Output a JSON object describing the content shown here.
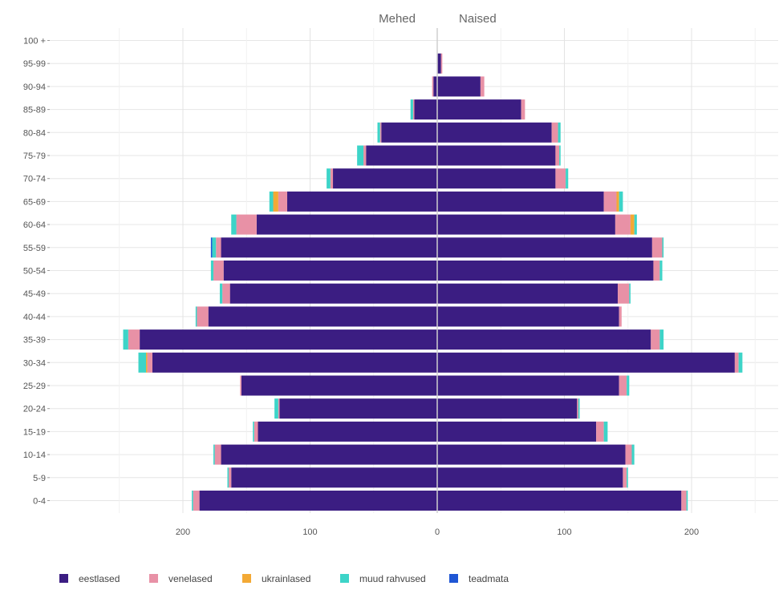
{
  "chart_data": {
    "type": "bar",
    "orientation": "horizontal-population-pyramid",
    "left_label": "Mehed",
    "right_label": "Naised",
    "categories": [
      "0-4",
      "5-9",
      "10-14",
      "15-19",
      "20-24",
      "25-29",
      "30-34",
      "35-39",
      "40-44",
      "45-49",
      "50-54",
      "55-59",
      "60-64",
      "65-69",
      "70-74",
      "75-79",
      "80-84",
      "85-89",
      "90-94",
      "95-99",
      "100 +"
    ],
    "x_ticks": [
      200,
      100,
      0,
      100,
      200
    ],
    "xlim": [
      -290,
      290
    ],
    "grid": true,
    "legend_position": "bottom",
    "series": [
      {
        "name": "eestlased",
        "color": "#3b1d82",
        "men": [
          187,
          162,
          170,
          141,
          124,
          154,
          224,
          234,
          180,
          163,
          168,
          170,
          142,
          118,
          82,
          56,
          44,
          18,
          3,
          0,
          0
        ],
        "women": [
          192,
          146,
          148,
          125,
          110,
          143,
          234,
          168,
          143,
          142,
          170,
          169,
          140,
          131,
          93,
          93,
          90,
          66,
          34,
          3,
          0
        ]
      },
      {
        "name": "venelased",
        "color": "#e891a6",
        "men": [
          5,
          2,
          5,
          3,
          1,
          1,
          4,
          9,
          9,
          6,
          8,
          4,
          16,
          7,
          2,
          2,
          1,
          1,
          1,
          0,
          0
        ],
        "women": [
          4,
          3,
          5,
          6,
          1,
          6,
          3,
          7,
          2,
          9,
          5,
          8,
          12,
          10,
          8,
          3,
          5,
          3,
          3,
          1,
          0
        ]
      },
      {
        "name": "ukrainlased",
        "color": "#f3a935",
        "men": [
          0,
          0,
          0,
          0,
          0,
          0,
          1,
          0,
          0,
          0,
          0,
          0,
          0,
          4,
          0,
          0,
          0,
          0,
          0,
          0,
          0
        ],
        "women": [
          0,
          0,
          0,
          0,
          0,
          0,
          0,
          0,
          0,
          0,
          0,
          0,
          3,
          2,
          0,
          0,
          0,
          0,
          0,
          0,
          0
        ]
      },
      {
        "name": "muud rahvused",
        "color": "#3dd4c8",
        "men": [
          1,
          1,
          1,
          1,
          3,
          0,
          6,
          4,
          1,
          2,
          2,
          3,
          4,
          3,
          3,
          5,
          2,
          2,
          0,
          0,
          0
        ],
        "women": [
          1,
          1,
          2,
          3,
          1,
          2,
          3,
          3,
          0,
          1,
          2,
          1,
          2,
          3,
          2,
          1,
          2,
          0,
          0,
          0,
          0
        ]
      },
      {
        "name": "teadmata",
        "color": "#1f56d4",
        "men": [
          0,
          0,
          0,
          0,
          0,
          0,
          0,
          0,
          0,
          0,
          0,
          1,
          0,
          0,
          0,
          0,
          0,
          0,
          0,
          0,
          0
        ],
        "women": [
          0,
          0,
          0,
          0,
          0,
          0,
          0,
          0,
          0,
          0,
          0,
          0,
          0,
          0,
          0,
          0,
          0,
          0,
          0,
          0,
          0
        ]
      }
    ]
  }
}
